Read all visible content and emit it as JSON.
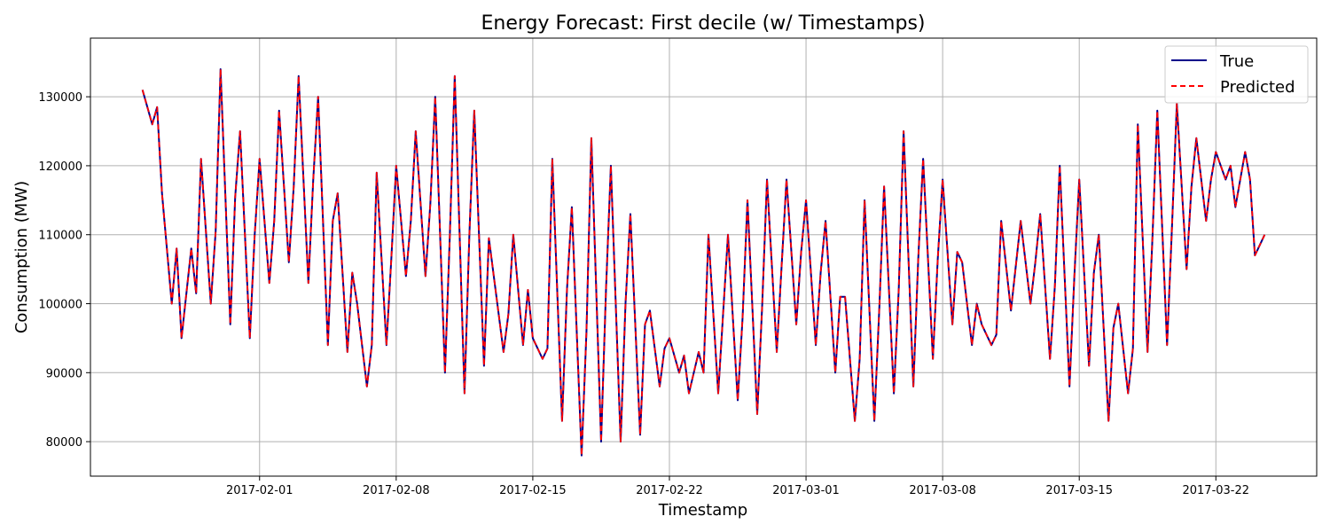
{
  "chart_data": {
    "type": "line",
    "title": "Energy Forecast: First decile (w/ Timestamps)",
    "xlabel": "Timestamp",
    "ylabel": "Consumption (MW)",
    "xlim": [
      "2017-01-23T08:00",
      "2017-03-27T04:00"
    ],
    "ylim": [
      75000,
      138500
    ],
    "yticks": [
      80000,
      90000,
      100000,
      110000,
      120000,
      130000
    ],
    "xticks": [
      "2017-02-01",
      "2017-02-08",
      "2017-02-15",
      "2017-02-22",
      "2017-03-01",
      "2017-03-08",
      "2017-03-15",
      "2017-03-22"
    ],
    "grid": true,
    "legend_position": "top-right",
    "series": [
      {
        "name": "True",
        "color": "#00008b",
        "style": "solid",
        "x_start": "2017-01-26T00:00",
        "x_end": "2017-03-24T12:00",
        "points_per_day": 4,
        "daily_peaks": [
          131000,
          116000,
          95000,
          121000,
          134000,
          125000,
          121000,
          128000,
          133000,
          130000,
          116000,
          100000,
          119000,
          120000,
          125000,
          130000,
          133000,
          128000,
          104000,
          110000,
          95000,
          121000,
          114000,
          124000,
          120000,
          113000,
          99000,
          95000,
          87000,
          110000,
          110000,
          115000,
          118000,
          118000,
          115000,
          112000,
          101000,
          115000,
          117000,
          125000,
          121000,
          118000,
          106000,
          97000,
          112000,
          112000,
          113000,
          120000,
          118000,
          110000,
          100000,
          126000,
          128000,
          129000,
          124000,
          122000,
          114000,
          107000
        ],
        "daily_troughs": [
          126000,
          100000,
          108000,
          100000,
          97000,
          95000,
          103000,
          106000,
          103000,
          94000,
          93000,
          88000,
          94000,
          104000,
          104000,
          90000,
          87000,
          91000,
          93000,
          94000,
          92000,
          83000,
          78000,
          80000,
          80000,
          81000,
          88000,
          90000,
          93000,
          87000,
          86000,
          84000,
          93000,
          97000,
          94000,
          90000,
          83000,
          83000,
          87000,
          88000,
          92000,
          97000,
          94000,
          94000,
          99000,
          100000,
          92000,
          88000,
          91000,
          83000,
          87000,
          93000,
          94000,
          105000,
          112000,
          118000,
          122000,
          110000
        ]
      },
      {
        "name": "Predicted",
        "color": "#ff0000",
        "style": "dashed",
        "same_as": "True"
      }
    ]
  }
}
